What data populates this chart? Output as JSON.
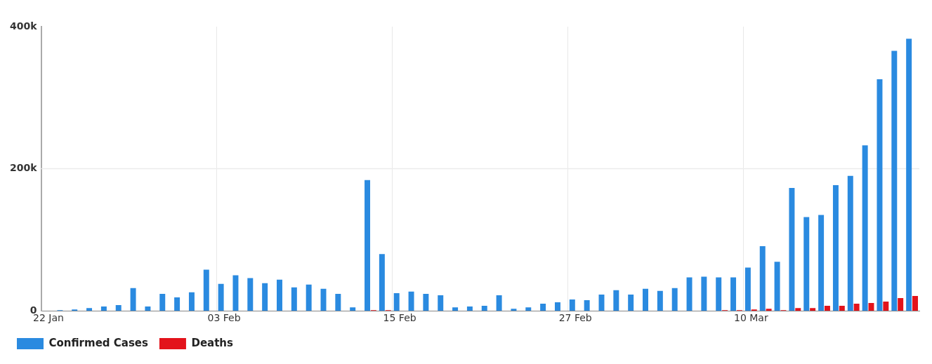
{
  "chart_data": {
    "type": "bar",
    "categories": [
      "22 Jan",
      null,
      null,
      null,
      null,
      null,
      null,
      null,
      null,
      null,
      null,
      null,
      "03 Feb",
      null,
      null,
      null,
      null,
      null,
      null,
      null,
      null,
      null,
      null,
      null,
      "15 Feb",
      null,
      null,
      null,
      null,
      null,
      null,
      null,
      null,
      null,
      null,
      null,
      "27 Feb",
      null,
      null,
      null,
      null,
      null,
      null,
      null,
      null,
      null,
      null,
      null,
      "10 Mar",
      null,
      null,
      null,
      null,
      null,
      null,
      null,
      null,
      null,
      null,
      null
    ],
    "series": [
      {
        "name": "Confirmed Cases",
        "color": "#2a8ae0",
        "values": [
          0,
          1000,
          2000,
          4000,
          6000,
          8000,
          32000,
          6000,
          24000,
          19000,
          26000,
          58000,
          38000,
          50000,
          46000,
          39000,
          44000,
          33000,
          37000,
          31000,
          24000,
          5000,
          184000,
          80000,
          25000,
          27000,
          24000,
          22000,
          5000,
          6000,
          7000,
          22000,
          3000,
          5000,
          10000,
          12000,
          16000,
          15000,
          23000,
          29000,
          23000,
          31000,
          28000,
          32000,
          47000,
          48000,
          47000,
          47000,
          61000,
          91000,
          69000,
          173000,
          132000,
          135000,
          177000,
          190000,
          233000,
          326000,
          366000,
          383000
        ]
      },
      {
        "name": "Deaths",
        "color": "#e3131b",
        "values": [
          0,
          0,
          0,
          0,
          0,
          0,
          0,
          0,
          0,
          0,
          0,
          0,
          0,
          0,
          0,
          0,
          0,
          0,
          0,
          0,
          0,
          0,
          1000,
          1000,
          0,
          0,
          0,
          0,
          0,
          0,
          0,
          0,
          0,
          0,
          0,
          0,
          0,
          0,
          0,
          0,
          0,
          0,
          0,
          0,
          0,
          0,
          1000,
          1000,
          2000,
          3000,
          1000,
          4000,
          4000,
          7000,
          7000,
          10000,
          11000,
          13000,
          18000,
          21000
        ]
      }
    ],
    "ylim": [
      0,
      400000
    ],
    "yticks": [
      0,
      {
        "value": 200000,
        "label": "200k"
      },
      {
        "value": 400000,
        "label": "400k"
      }
    ],
    "grid": "x",
    "ref_lines": [
      {
        "axis": "y",
        "value": 200000,
        "color": "#ececec"
      }
    ],
    "legend": "bottom left"
  }
}
